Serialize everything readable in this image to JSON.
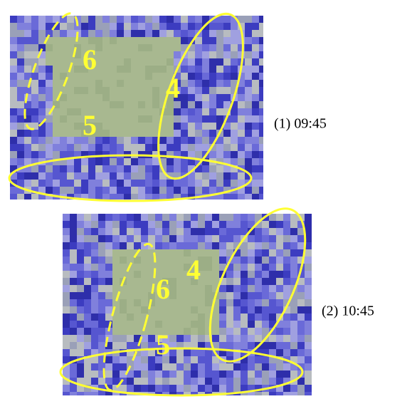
{
  "panels": [
    {
      "caption": "(1) 09:45",
      "regions": [
        "6",
        "4",
        "5"
      ]
    },
    {
      "caption": "(2) 10:45",
      "regions": [
        "4",
        "6",
        "5"
      ]
    }
  ]
}
